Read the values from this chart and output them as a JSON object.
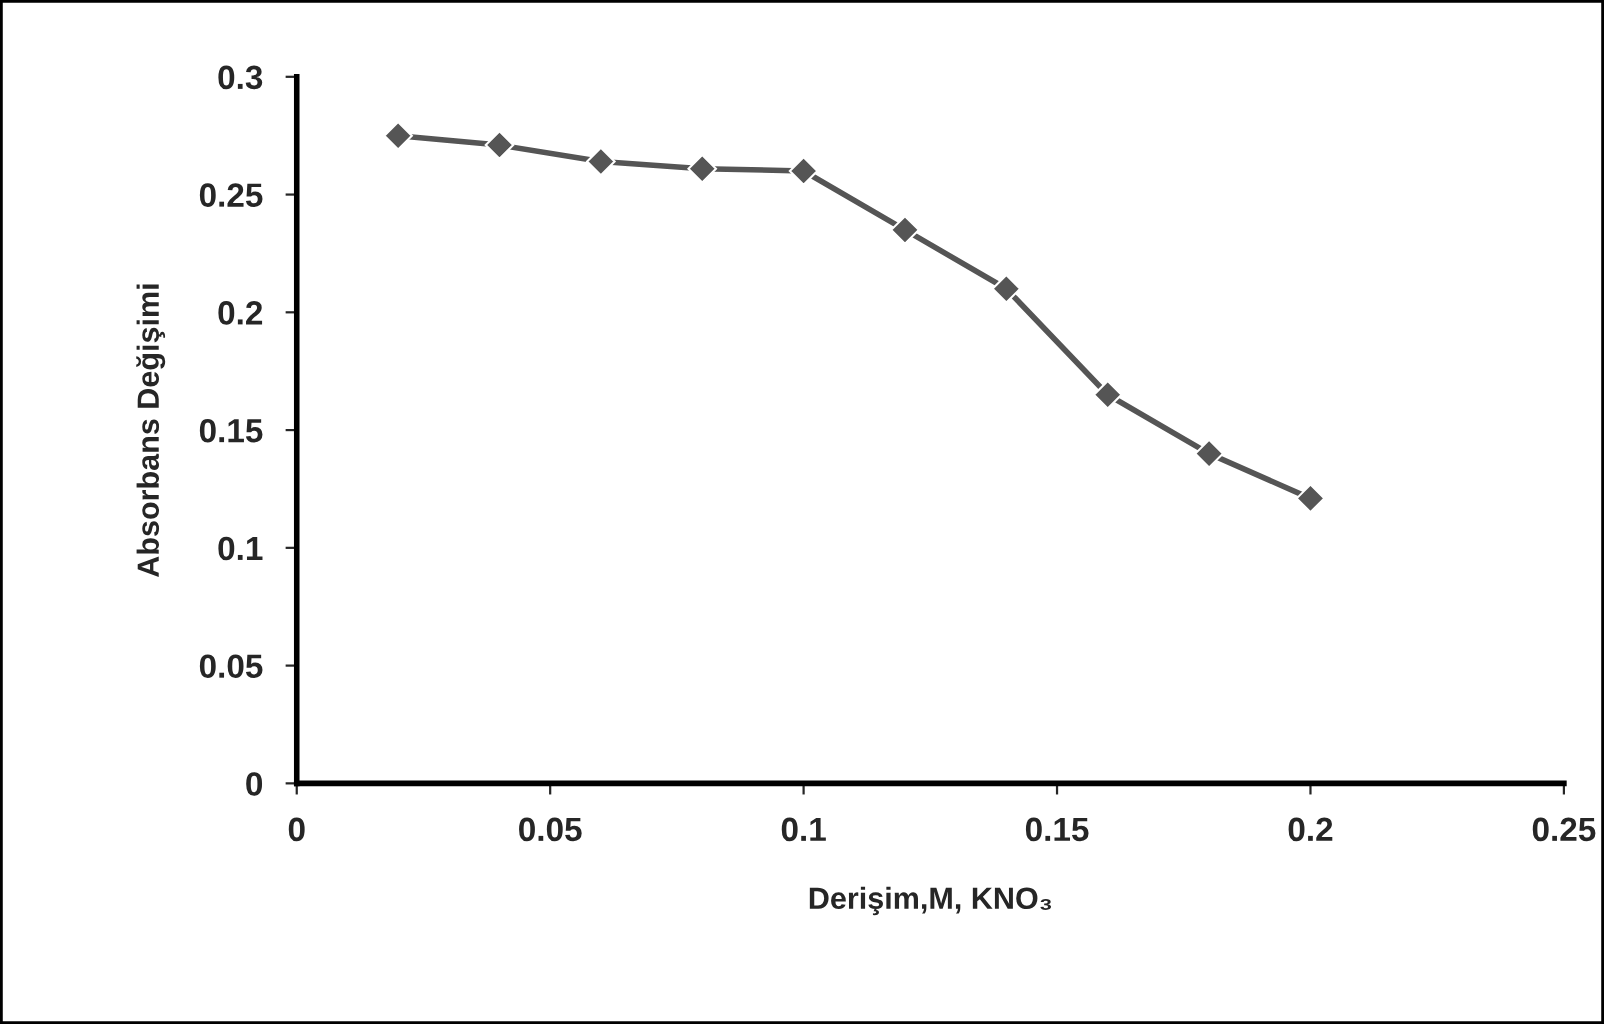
{
  "chart_data": {
    "type": "line",
    "xlabel": "Derişim,M, KNO₃",
    "ylabel": "Absorbans Değişimi",
    "x": [
      0.02,
      0.04,
      0.06,
      0.08,
      0.1,
      0.12,
      0.14,
      0.16,
      0.18,
      0.2
    ],
    "series": [
      {
        "color": "#555555",
        "values": [
          0.275,
          0.271,
          0.264,
          0.261,
          0.26,
          0.235,
          0.21,
          0.165,
          0.14,
          0.121
        ]
      }
    ],
    "xlim": [
      0,
      0.25
    ],
    "xticks": [
      0,
      0.05,
      0.1,
      0.15,
      0.2,
      0.25
    ],
    "ylim": [
      0,
      0.3
    ],
    "yticks": [
      0,
      0.05,
      0.1,
      0.15,
      0.2,
      0.25,
      0.3
    ],
    "marker": "diamond",
    "line_style": "solid",
    "grid": false,
    "legend": false
  }
}
